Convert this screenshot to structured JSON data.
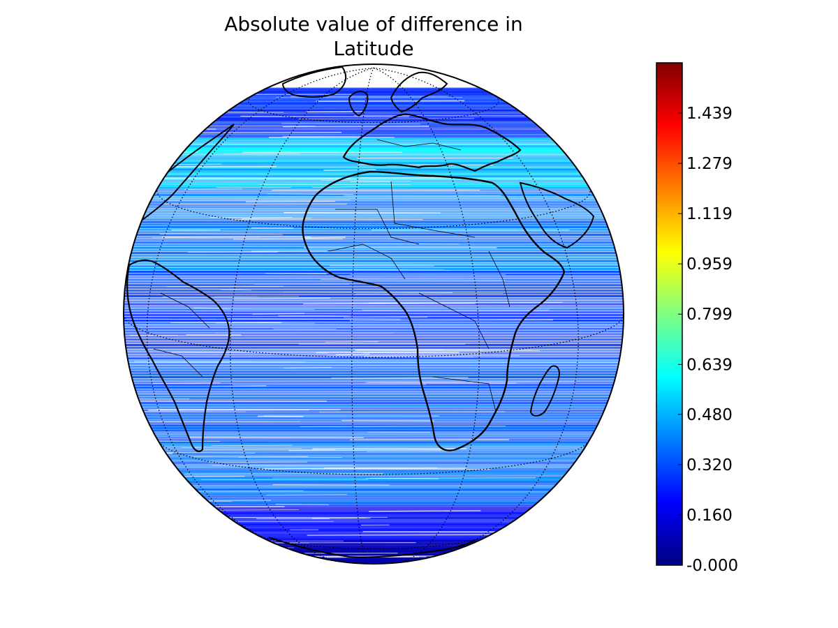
{
  "chart_data": {
    "type": "heatmap",
    "projection": "orthographic",
    "title_lines": [
      "Absolute value of difference in",
      "Latitude"
    ],
    "colormap": "jet",
    "colorbar": {
      "location": "right",
      "range": [
        0.0,
        1.599
      ],
      "ticks": [
        {
          "value": 1.439,
          "label": "1.439"
        },
        {
          "value": 1.279,
          "label": "1.279"
        },
        {
          "value": 1.119,
          "label": "1.119"
        },
        {
          "value": 0.959,
          "label": "0.959"
        },
        {
          "value": 0.799,
          "label": "0.799"
        },
        {
          "value": 0.639,
          "label": "0.639"
        },
        {
          "value": 0.48,
          "label": "0.480"
        },
        {
          "value": 0.32,
          "label": "0.320"
        },
        {
          "value": 0.16,
          "label": "0.160"
        },
        {
          "value": 0.0,
          "label": "-0.000"
        }
      ]
    },
    "field_bands": [
      {
        "lat_from": 75,
        "lat_to": 55,
        "value": 0.28
      },
      {
        "lat_from": 55,
        "lat_to": 40,
        "value": 0.52
      },
      {
        "lat_from": 40,
        "lat_to": 20,
        "value": 0.4
      },
      {
        "lat_from": 20,
        "lat_to": 0,
        "value": 0.3
      },
      {
        "lat_from": 0,
        "lat_to": -20,
        "value": 0.34
      },
      {
        "lat_from": -20,
        "lat_to": -40,
        "value": 0.38
      },
      {
        "lat_from": -40,
        "lat_to": -55,
        "value": 0.22
      },
      {
        "lat_from": -55,
        "lat_to": -90,
        "value": 0.08
      }
    ],
    "graticule": "dotted",
    "coastlines": true,
    "country_borders": true,
    "grid": true
  },
  "colors": {
    "colorbar_stops": [
      "#00007f",
      "#0000ff",
      "#007fff",
      "#00ffff",
      "#7fff7f",
      "#ffff00",
      "#ff7f00",
      "#ff0000",
      "#7f0000"
    ],
    "outline": "#000000",
    "background": "#ffffff"
  }
}
